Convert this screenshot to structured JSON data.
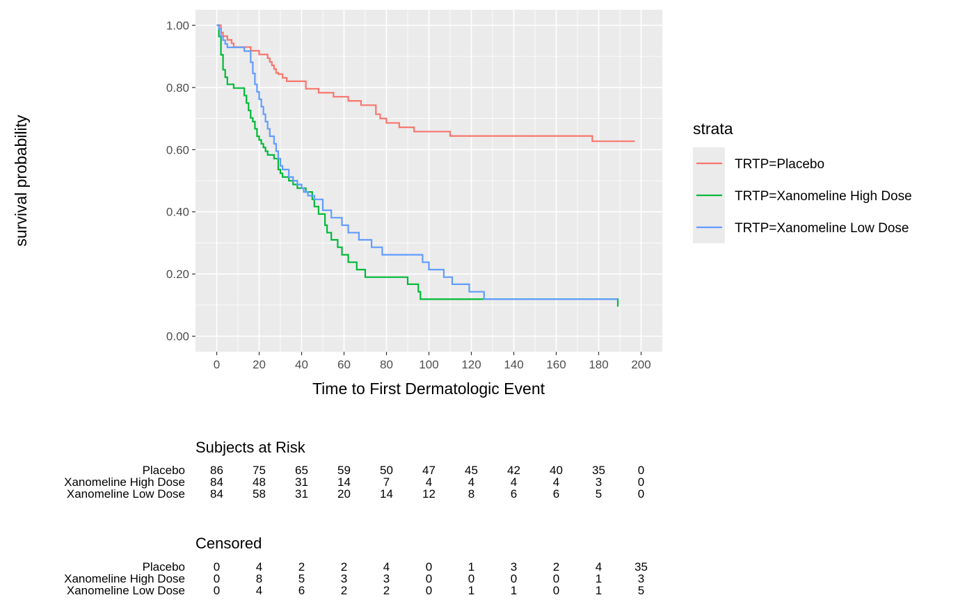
{
  "chart_data": {
    "type": "line",
    "subtype": "kaplan-meier step",
    "xlabel": "Time to First Dermatologic Event",
    "ylabel": "survival probability",
    "xlim": [
      -10,
      210
    ],
    "ylim": [
      -0.05,
      1.05
    ],
    "x_ticks": [
      0,
      20,
      40,
      60,
      80,
      100,
      120,
      140,
      160,
      180,
      200
    ],
    "y_ticks": [
      0.0,
      0.2,
      0.4,
      0.6,
      0.8,
      1.0
    ],
    "y_tick_labels": [
      "0.00",
      "0.20",
      "0.40",
      "0.60",
      "0.80",
      "1.00"
    ],
    "grid": true,
    "background": "#ebebeb",
    "legend": {
      "title": "strata",
      "position": "right",
      "entries": [
        "TRTP=Placebo",
        "TRTP=Xanomeline High Dose",
        "TRTP=Xanomeline Low Dose"
      ]
    },
    "series": [
      {
        "name": "TRTP=Placebo",
        "color": "#F8766D",
        "x": [
          0,
          2,
          3,
          5,
          7,
          8,
          10,
          16,
          20,
          24,
          25,
          26,
          27,
          28,
          29,
          31,
          33,
          35,
          42,
          44,
          48,
          55,
          62,
          68,
          75,
          77,
          80,
          86,
          93,
          101,
          110,
          177,
          197
        ],
        "y": [
          1.0,
          0.977,
          0.965,
          0.953,
          0.942,
          0.93,
          0.93,
          0.918,
          0.906,
          0.894,
          0.882,
          0.871,
          0.859,
          0.847,
          0.843,
          0.831,
          0.82,
          0.82,
          0.796,
          0.796,
          0.783,
          0.77,
          0.757,
          0.743,
          0.714,
          0.7,
          0.686,
          0.672,
          0.658,
          0.658,
          0.644,
          0.627,
          0.627
        ]
      },
      {
        "name": "TRTP=Xanomeline High Dose",
        "color": "#00BA38",
        "x": [
          0,
          1,
          2,
          3,
          4,
          5,
          6,
          8,
          13,
          14,
          15,
          16,
          17,
          18,
          19,
          20,
          21,
          22,
          23,
          24,
          27,
          29,
          30,
          31,
          34,
          36,
          38,
          42,
          45,
          46,
          48,
          51,
          52,
          54,
          57,
          59,
          62,
          66,
          70,
          90,
          95,
          96,
          189
        ],
        "y": [
          1.0,
          0.964,
          0.905,
          0.857,
          0.833,
          0.81,
          0.81,
          0.798,
          0.774,
          0.75,
          0.726,
          0.702,
          0.69,
          0.667,
          0.643,
          0.631,
          0.619,
          0.607,
          0.595,
          0.583,
          0.571,
          0.536,
          0.524,
          0.512,
          0.5,
          0.488,
          0.476,
          0.464,
          0.44,
          0.417,
          0.393,
          0.357,
          0.333,
          0.31,
          0.286,
          0.262,
          0.238,
          0.214,
          0.19,
          0.167,
          0.143,
          0.119,
          0.095
        ]
      },
      {
        "name": "TRTP=Xanomeline Low Dose",
        "color": "#619CFF",
        "x": [
          0,
          1,
          2,
          3,
          4,
          5,
          13,
          16,
          17,
          18,
          19,
          20,
          21,
          22,
          23,
          24,
          25,
          27,
          28,
          29,
          30,
          31,
          34,
          36,
          38,
          40,
          41,
          43,
          46,
          50,
          54,
          59,
          62,
          67,
          73,
          78,
          97,
          100,
          107,
          111,
          119,
          126,
          189
        ],
        "y": [
          1.0,
          0.988,
          0.964,
          0.952,
          0.94,
          0.929,
          0.917,
          0.881,
          0.845,
          0.81,
          0.786,
          0.762,
          0.738,
          0.714,
          0.69,
          0.667,
          0.643,
          0.619,
          0.595,
          0.571,
          0.548,
          0.536,
          0.512,
          0.5,
          0.488,
          0.476,
          0.464,
          0.452,
          0.44,
          0.405,
          0.381,
          0.357,
          0.333,
          0.31,
          0.286,
          0.262,
          0.238,
          0.214,
          0.19,
          0.167,
          0.143,
          0.119,
          0.119
        ]
      }
    ],
    "risk_table": {
      "title": "Subjects at Risk",
      "rows": [
        {
          "label": "Placebo",
          "values": [
            "86",
            "75",
            "65",
            "59",
            "50",
            "47",
            "45",
            "42",
            "40",
            "35",
            "0"
          ]
        },
        {
          "label": "Xanomeline High Dose",
          "values": [
            "84",
            "48",
            "31",
            "14",
            "7",
            "4",
            "4",
            "4",
            "4",
            "3",
            "0"
          ]
        },
        {
          "label": "Xanomeline Low Dose",
          "values": [
            "84",
            "58",
            "31",
            "20",
            "14",
            "12",
            "8",
            "6",
            "6",
            "5",
            "0"
          ]
        }
      ]
    },
    "censored_table": {
      "title": "Censored",
      "rows": [
        {
          "label": "Placebo",
          "values": [
            "0",
            "4",
            "2",
            "2",
            "4",
            "0",
            "1",
            "3",
            "2",
            "4",
            "35"
          ]
        },
        {
          "label": "Xanomeline High Dose",
          "values": [
            "0",
            "8",
            "5",
            "3",
            "3",
            "0",
            "0",
            "0",
            "0",
            "1",
            "3"
          ]
        },
        {
          "label": "Xanomeline Low Dose",
          "values": [
            "0",
            "4",
            "6",
            "2",
            "2",
            "0",
            "1",
            "1",
            "0",
            "1",
            "5"
          ]
        }
      ]
    }
  }
}
